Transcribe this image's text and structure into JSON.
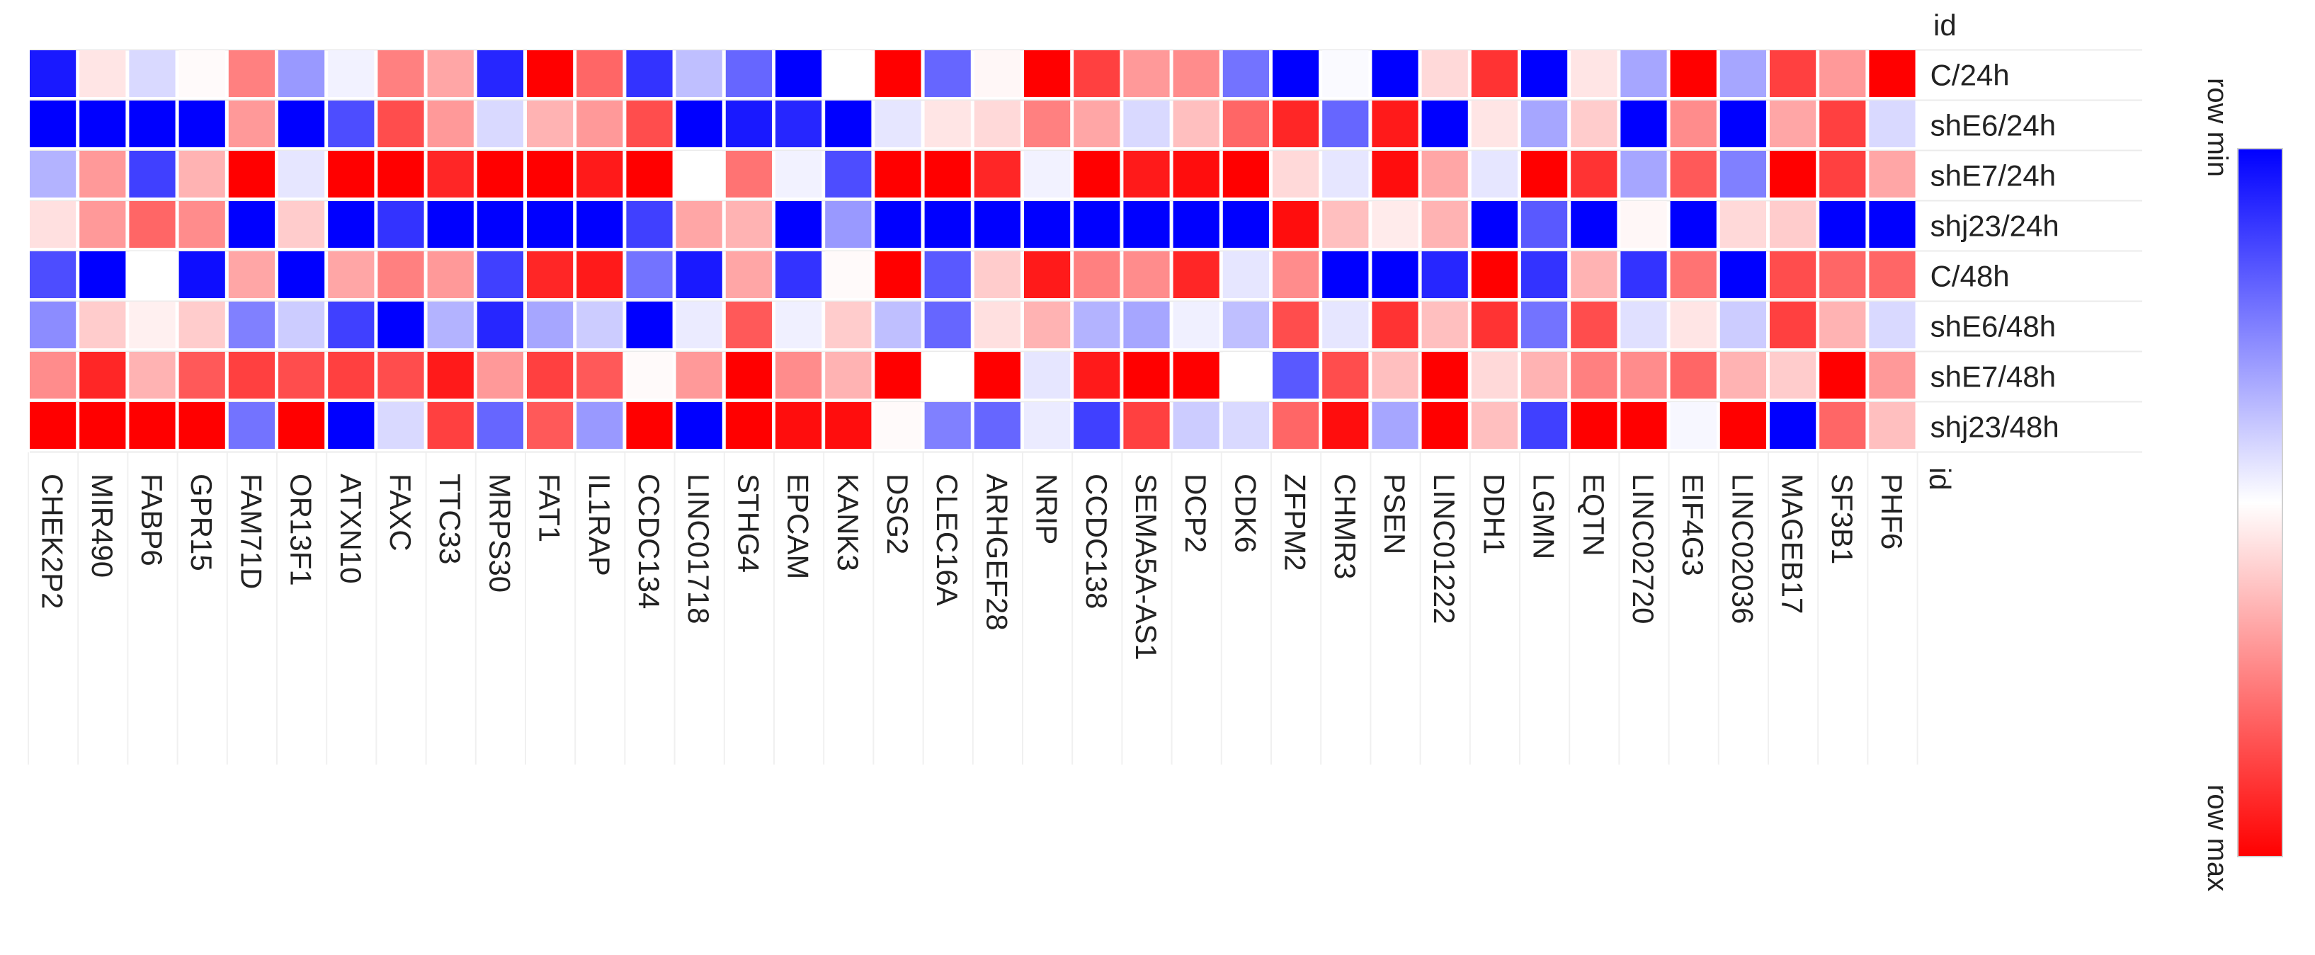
{
  "chart_data": {
    "type": "heatmap",
    "corner_label": "id",
    "col_axis_label": "id",
    "rows": [
      "C/24h",
      "shE6/24h",
      "shE7/24h",
      "shj23/24h",
      "C/48h",
      "shE6/48h",
      "shE7/48h",
      "shj23/48h"
    ],
    "columns": [
      "CHEK2P2",
      "MIR490",
      "FABP6",
      "GPR15",
      "FAM71D",
      "OR13F1",
      "ATXN10",
      "FAXC",
      "TTC33",
      "MRPS30",
      "FAT1",
      "IL1RAP",
      "CCDC134",
      "LINC01718",
      "STHG4",
      "EPCAM",
      "KANK3",
      "DSG2",
      "CLEC16A",
      "ARHGEF28",
      "NRIP",
      "CCDC138",
      "SEMA5A-AS1",
      "DCP2",
      "CDK6",
      "ZFPM2",
      "CHMR3",
      "PSEN",
      "LINC01222",
      "DDH1",
      "LGMN",
      "EQTN",
      "LINC02720",
      "EIF4G3",
      "LINC02036",
      "MAGEB17",
      "SF3B1",
      "PHF6"
    ],
    "value_range": [
      -1,
      1
    ],
    "value_meaning": "positive = toward row max (red), negative = toward row min (blue)",
    "values": [
      [
        -0.9,
        0.1,
        -0.15,
        0.02,
        0.5,
        -0.4,
        -0.05,
        0.5,
        0.35,
        -0.85,
        1.0,
        0.6,
        -0.8,
        -0.25,
        -0.6,
        -1.0,
        0.0,
        1.0,
        -0.6,
        0.03,
        1.0,
        0.75,
        0.4,
        0.45,
        -0.55,
        -1.0,
        -0.02,
        -1.0,
        0.15,
        0.8,
        -1.0,
        0.1,
        -0.35,
        1.0,
        -0.35,
        0.75,
        0.4,
        1.0
      ],
      [
        -1.0,
        -1.0,
        -1.0,
        -1.0,
        0.4,
        -1.0,
        -0.7,
        0.7,
        0.4,
        -0.15,
        0.3,
        0.4,
        0.7,
        -1.0,
        -0.9,
        -0.85,
        -1.0,
        -0.1,
        0.1,
        0.15,
        0.5,
        0.35,
        -0.15,
        0.25,
        0.6,
        0.85,
        -0.6,
        0.9,
        -1.0,
        0.1,
        -0.35,
        0.2,
        -1.0,
        0.45,
        -1.0,
        0.35,
        0.75,
        -0.15
      ],
      [
        -0.3,
        0.4,
        -0.75,
        0.3,
        1.0,
        -0.1,
        1.0,
        1.0,
        0.85,
        1.0,
        1.0,
        0.9,
        1.0,
        0.0,
        0.55,
        -0.05,
        -0.7,
        1.0,
        1.0,
        0.85,
        -0.05,
        1.0,
        0.9,
        0.95,
        1.0,
        0.15,
        -0.1,
        0.95,
        0.35,
        -0.1,
        1.0,
        0.8,
        -0.35,
        0.65,
        -0.5,
        1.0,
        0.75,
        0.35
      ],
      [
        0.12,
        0.4,
        0.6,
        0.45,
        -1.0,
        0.2,
        -1.0,
        -0.8,
        -1.0,
        -1.0,
        -1.0,
        -1.0,
        -0.75,
        0.35,
        0.3,
        -1.0,
        -0.4,
        -1.0,
        -1.0,
        -1.0,
        -1.0,
        -1.0,
        -1.0,
        -1.0,
        -1.0,
        0.95,
        0.25,
        0.08,
        0.3,
        -1.0,
        -0.65,
        -1.0,
        0.03,
        -1.0,
        0.15,
        0.2,
        -1.0,
        -1.0
      ],
      [
        -0.7,
        -1.0,
        0.0,
        -0.95,
        0.35,
        -1.0,
        0.35,
        0.5,
        0.4,
        -0.75,
        0.85,
        0.9,
        -0.55,
        -0.9,
        0.35,
        -0.8,
        0.02,
        1.0,
        -0.65,
        0.2,
        0.9,
        0.5,
        0.45,
        0.85,
        -0.1,
        0.45,
        -1.0,
        -1.0,
        -0.85,
        1.0,
        -0.8,
        0.3,
        -0.8,
        0.55,
        -1.0,
        0.7,
        0.6,
        0.6
      ],
      [
        -0.45,
        0.2,
        0.06,
        0.2,
        -0.5,
        -0.2,
        -0.75,
        -1.0,
        -0.3,
        -0.85,
        -0.35,
        -0.2,
        -1.0,
        -0.08,
        0.65,
        -0.06,
        0.2,
        -0.25,
        -0.6,
        0.12,
        0.3,
        -0.3,
        -0.35,
        -0.06,
        -0.25,
        0.7,
        -0.1,
        0.8,
        0.25,
        0.8,
        -0.55,
        0.7,
        -0.12,
        0.1,
        -0.2,
        0.75,
        0.3,
        -0.15
      ],
      [
        0.45,
        0.85,
        0.3,
        0.65,
        0.75,
        0.7,
        0.75,
        0.7,
        0.9,
        0.4,
        0.75,
        0.65,
        0.02,
        0.4,
        1.0,
        0.45,
        0.3,
        1.0,
        0.0,
        1.0,
        -0.1,
        0.9,
        1.0,
        1.0,
        0.0,
        -0.65,
        0.7,
        0.25,
        1.0,
        0.15,
        0.3,
        0.5,
        0.45,
        0.6,
        0.3,
        0.2,
        1.0,
        0.4
      ],
      [
        1.0,
        1.0,
        1.0,
        1.0,
        -0.55,
        1.0,
        -1.0,
        -0.15,
        0.75,
        -0.6,
        0.65,
        -0.4,
        1.0,
        -1.0,
        1.0,
        0.95,
        0.95,
        0.02,
        -0.5,
        -0.6,
        -0.08,
        -0.75,
        0.75,
        -0.2,
        -0.15,
        0.6,
        0.95,
        -0.35,
        1.0,
        0.25,
        -0.75,
        1.0,
        1.0,
        -0.03,
        1.0,
        -1.0,
        0.6,
        0.25
      ]
    ],
    "legend": {
      "top_label": "row min",
      "bottom_label": "row max",
      "colors": [
        "#0000ff",
        "#ffffff",
        "#ff0000"
      ],
      "orientation": "vertical",
      "placement": "right"
    }
  }
}
